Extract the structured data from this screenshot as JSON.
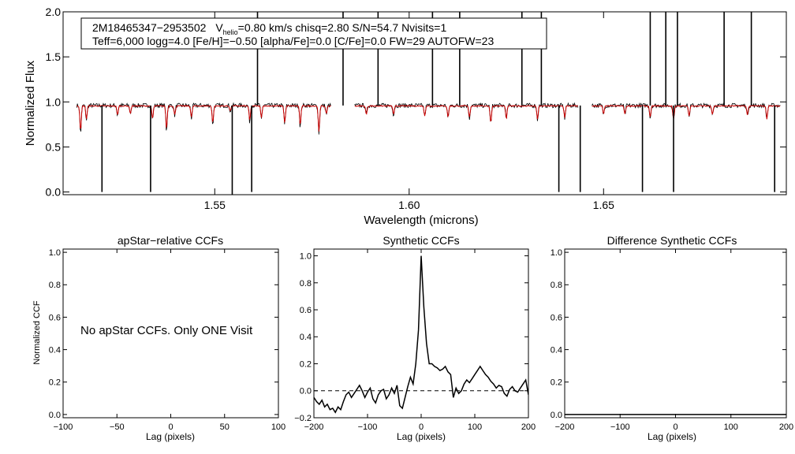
{
  "chart_data": [
    {
      "type": "line",
      "xlabel": "Wavelength (microns)",
      "ylabel": "Normalized Flux",
      "xlim": [
        1.511,
        1.697
      ],
      "ylim": [
        -0.03,
        2.0
      ],
      "xticks": [
        1.55,
        1.6,
        1.65
      ],
      "xtick_labels": [
        "1.55",
        "1.60",
        "1.65"
      ],
      "yticks": [
        0.0,
        0.5,
        1.0,
        1.5,
        2.0
      ],
      "ytick_labels": [
        "0.0",
        "0.5",
        "1.0",
        "1.5",
        "2.0"
      ],
      "annotation": {
        "line1_star": "2M18465347−2953502",
        "line1_v": "V",
        "line1_sub": "helio",
        "line1_rest": "=0.80 km/s  chisq=2.80  S/N=54.7  Nvisits=1",
        "line2": "Teff=6,000 logg=4.0 [Fe/H]=−0.50 [alpha/Fe]=0.0 [C/Fe]=0.0 FW=29 AUTOFW=23"
      },
      "chips": [
        [
          1.5145,
          1.58
        ],
        [
          1.586,
          1.6435
        ],
        [
          1.647,
          1.6955
        ]
      ],
      "series": [
        {
          "color": "#000000",
          "continuum": 0.96,
          "noise": 0.025
        },
        {
          "color": "#cc0000",
          "continuum": 0.955,
          "noise": 0.006
        }
      ],
      "telluric_spikes": [
        [
          1.521,
          0.0
        ],
        [
          1.5335,
          0.0
        ],
        [
          1.5545,
          -0.03
        ],
        [
          1.5595,
          0.0
        ],
        [
          1.561,
          2.0
        ],
        [
          1.583,
          2.0
        ],
        [
          1.592,
          2.0
        ],
        [
          1.606,
          2.0
        ],
        [
          1.613,
          2.0
        ],
        [
          1.629,
          2.0
        ],
        [
          1.634,
          2.0
        ],
        [
          1.6385,
          0.0
        ],
        [
          1.644,
          0.0
        ],
        [
          1.66,
          0.0
        ],
        [
          1.662,
          2.0
        ],
        [
          1.666,
          2.0
        ],
        [
          1.668,
          0.0
        ],
        [
          1.669,
          2.0
        ],
        [
          1.681,
          2.0
        ],
        [
          1.688,
          2.0
        ],
        [
          1.694,
          0.0
        ]
      ],
      "absorption_lines": [
        [
          1.5155,
          0.65
        ],
        [
          1.517,
          0.8
        ],
        [
          1.525,
          0.85
        ],
        [
          1.5283,
          0.87
        ],
        [
          1.534,
          0.8
        ],
        [
          1.5376,
          0.68
        ],
        [
          1.5397,
          0.85
        ],
        [
          1.544,
          0.82
        ],
        [
          1.5495,
          0.75
        ],
        [
          1.554,
          0.9
        ],
        [
          1.559,
          0.78
        ],
        [
          1.562,
          0.82
        ],
        [
          1.568,
          0.75
        ],
        [
          1.572,
          0.72
        ],
        [
          1.5768,
          0.65
        ],
        [
          1.5787,
          0.86
        ],
        [
          1.589,
          0.85
        ],
        [
          1.596,
          0.85
        ],
        [
          1.604,
          0.84
        ],
        [
          1.61,
          0.82
        ],
        [
          1.6155,
          0.82
        ],
        [
          1.621,
          0.75
        ],
        [
          1.625,
          0.8
        ],
        [
          1.633,
          0.8
        ],
        [
          1.64,
          0.82
        ],
        [
          1.65,
          0.86
        ],
        [
          1.6555,
          0.86
        ],
        [
          1.662,
          0.82
        ],
        [
          1.668,
          0.8
        ],
        [
          1.672,
          0.83
        ],
        [
          1.678,
          0.86
        ],
        [
          1.687,
          0.85
        ],
        [
          1.692,
          0.8
        ]
      ]
    },
    {
      "type": "line",
      "title": "apStar−relative CCFs",
      "xlabel": "Lag (pixels)",
      "ylabel": "Normalized CCF",
      "xlim": [
        -100,
        100
      ],
      "ylim": [
        -0.02,
        1.02
      ],
      "xticks": [
        -100,
        -50,
        0,
        50,
        100
      ],
      "xtick_labels": [
        "−100",
        "−50",
        "0",
        "50",
        "100"
      ],
      "yticks": [
        0.0,
        0.2,
        0.4,
        0.6,
        0.8,
        1.0
      ],
      "ytick_labels": [
        "0.0",
        "0.2",
        "0.4",
        "0.6",
        "0.8",
        "1.0"
      ],
      "message": "No apStar CCFs.  Only ONE Visit",
      "series": []
    },
    {
      "type": "line",
      "title": "Synthetic CCFs",
      "xlabel": "Lag (pixels)",
      "xlim": [
        -200,
        200
      ],
      "ylim": [
        -0.2,
        1.05
      ],
      "xticks": [
        -200,
        -100,
        0,
        100,
        200
      ],
      "xtick_labels": [
        "−200",
        "−100",
        "0",
        "100",
        "200"
      ],
      "yticks": [
        -0.2,
        0.0,
        0.2,
        0.4,
        0.6,
        0.8,
        1.0
      ],
      "ytick_labels": [
        "−0.2",
        "0.0",
        "0.2",
        "0.4",
        "0.6",
        "0.8",
        "1.0"
      ],
      "baseline": 0.0,
      "series": [
        {
          "color": "#000000",
          "x": [
            -200,
            -195,
            -190,
            -185,
            -180,
            -175,
            -170,
            -165,
            -160,
            -155,
            -150,
            -145,
            -140,
            -135,
            -130,
            -125,
            -120,
            -115,
            -110,
            -105,
            -100,
            -95,
            -90,
            -85,
            -80,
            -75,
            -70,
            -65,
            -60,
            -55,
            -50,
            -45,
            -40,
            -35,
            -30,
            -25,
            -20,
            -15,
            -10,
            -5,
            0,
            5,
            10,
            15,
            20,
            25,
            30,
            35,
            40,
            45,
            50,
            55,
            60,
            65,
            70,
            75,
            80,
            85,
            90,
            95,
            100,
            105,
            110,
            115,
            120,
            125,
            130,
            135,
            140,
            145,
            150,
            155,
            160,
            165,
            170,
            175,
            180,
            185,
            190,
            195,
            200
          ],
          "y": [
            -0.05,
            -0.08,
            -0.1,
            -0.07,
            -0.12,
            -0.1,
            -0.14,
            -0.13,
            -0.16,
            -0.12,
            -0.14,
            -0.08,
            -0.03,
            -0.01,
            -0.05,
            -0.02,
            0.01,
            0.04,
            0.0,
            -0.05,
            -0.01,
            0.02,
            -0.06,
            -0.09,
            -0.03,
            0.0,
            0.01,
            -0.06,
            -0.03,
            0.02,
            -0.02,
            0.04,
            -0.11,
            -0.13,
            -0.05,
            0.03,
            0.1,
            0.05,
            0.2,
            0.45,
            1.0,
            0.62,
            0.35,
            0.2,
            0.2,
            0.18,
            0.17,
            0.15,
            0.16,
            0.18,
            0.14,
            0.12,
            -0.05,
            0.02,
            -0.02,
            0.0,
            0.05,
            0.08,
            0.06,
            0.09,
            0.12,
            0.15,
            0.18,
            0.15,
            0.12,
            0.1,
            0.07,
            0.05,
            0.02,
            0.04,
            0.03,
            -0.02,
            -0.04,
            0.01,
            0.03,
            0.0,
            -0.01,
            0.02,
            0.05,
            0.08,
            -0.03
          ]
        }
      ]
    },
    {
      "type": "line",
      "title": "Difference Synthetic CCFs",
      "xlabel": "Lag (pixels)",
      "xlim": [
        -200,
        200
      ],
      "ylim": [
        -0.02,
        1.02
      ],
      "xticks": [
        -200,
        -100,
        0,
        100,
        200
      ],
      "xtick_labels": [
        "−200",
        "−100",
        "0",
        "100",
        "200"
      ],
      "yticks": [
        0.0,
        0.2,
        0.4,
        0.6,
        0.8,
        1.0
      ],
      "ytick_labels": [
        "0.0",
        "0.2",
        "0.4",
        "0.6",
        "0.8",
        "1.0"
      ],
      "series": [
        {
          "color": "#000000",
          "x": [
            -200,
            200
          ],
          "y": [
            0.0,
            0.0
          ]
        }
      ]
    }
  ]
}
